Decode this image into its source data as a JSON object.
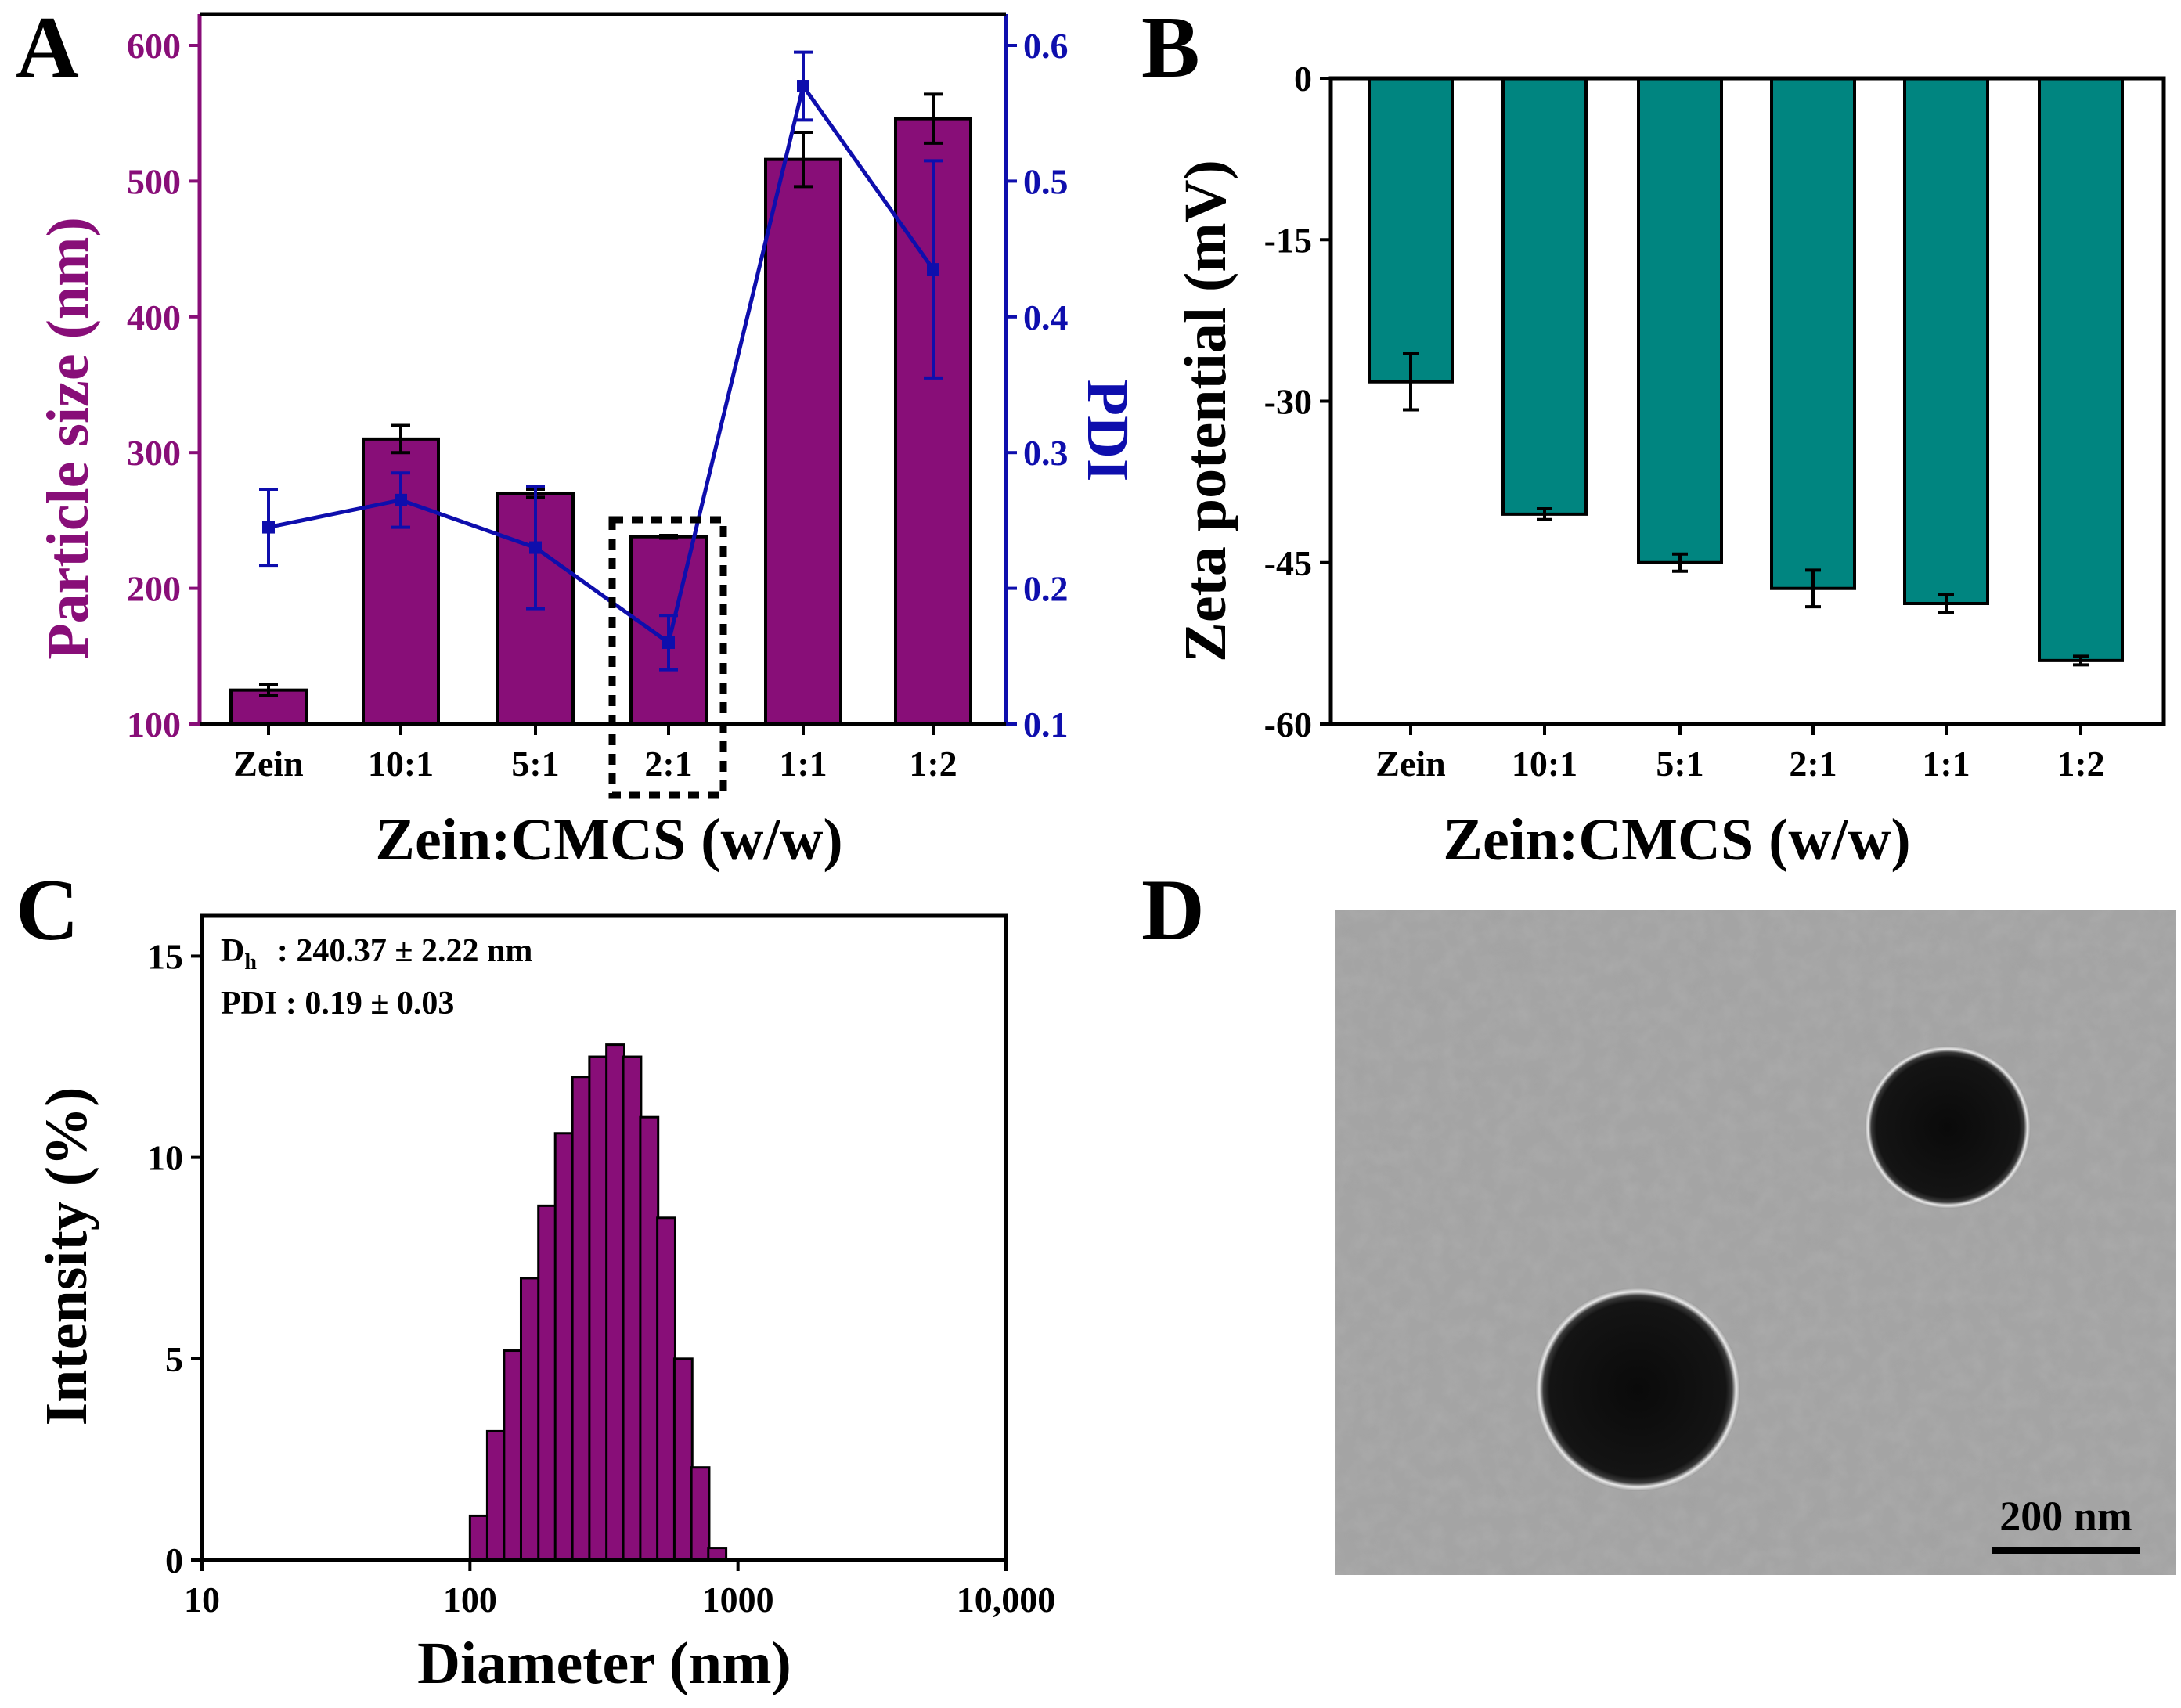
{
  "colors": {
    "purple": "#880e78",
    "teal": "#008580",
    "blue": "#0e0ead",
    "axis": "#000000"
  },
  "panels": {
    "a": "A",
    "b": "B",
    "c": "C",
    "d": "D"
  },
  "chart_data": [
    {
      "id": "A",
      "type": "bar",
      "categories": [
        "Zein",
        "10:1",
        "5:1",
        "2:1",
        "1:1",
        "1:2"
      ],
      "series": [
        {
          "name": "Particle size",
          "axis": "left",
          "values": [
            125,
            310,
            270,
            238,
            516,
            546
          ],
          "errors": [
            4,
            10,
            3,
            1,
            20,
            18
          ]
        },
        {
          "name": "PDI",
          "axis": "right",
          "type": "line",
          "values": [
            0.245,
            0.265,
            0.23,
            0.16,
            0.57,
            0.435
          ],
          "errors": [
            0.028,
            0.02,
            0.045,
            0.02,
            0.025,
            0.08
          ]
        }
      ],
      "xlabel": "Zein:CMCS (w/w)",
      "ylabel": "Particle size (nm)",
      "y2label": "PDI",
      "ylim": [
        100,
        600
      ],
      "y2lim": [
        0.1,
        0.6
      ],
      "yticks": [
        "100",
        "200",
        "300",
        "400",
        "500",
        "600"
      ],
      "y2ticks": [
        "0.1",
        "0.2",
        "0.3",
        "0.4",
        "0.5",
        "0.6"
      ],
      "highlight": "2:1"
    },
    {
      "id": "B",
      "type": "bar",
      "categories": [
        "Zein",
        "10:1",
        "5:1",
        "2:1",
        "1:1",
        "1:2"
      ],
      "values": [
        -28.2,
        -40.5,
        -45.0,
        -47.4,
        -48.8,
        -54.1
      ],
      "errors": [
        2.6,
        0.5,
        0.8,
        1.7,
        0.8,
        0.4
      ],
      "xlabel": "Zein:CMCS (w/w)",
      "ylabel": "Zeta potential (mV)",
      "ylim": [
        -60,
        0
      ],
      "yticks": [
        "0",
        "-15",
        "-30",
        "-45",
        "-60"
      ]
    },
    {
      "id": "C",
      "type": "bar",
      "scale": "log-x",
      "bin_width_log10": 0.0667,
      "x": [
        100,
        116,
        134,
        155,
        180,
        208,
        241,
        279,
        323,
        373,
        432,
        500,
        579,
        670,
        775
      ],
      "values": [
        1.1,
        3.2,
        5.2,
        7.0,
        8.8,
        10.6,
        12.0,
        12.5,
        12.8,
        12.5,
        11.0,
        8.5,
        5.0,
        2.3,
        0.3
      ],
      "xlabel": "Diameter (nm)",
      "ylabel": "Intensity (%)",
      "xlim": [
        10,
        10000
      ],
      "ylim": [
        0,
        16
      ],
      "xticks": [
        "10",
        "100",
        "1000",
        "10,000"
      ],
      "yticks": [
        "0",
        "5",
        "10",
        "15"
      ],
      "annotations": {
        "dh_main": "D",
        "dh_sub": "h",
        "dh_value": ": 240.37 ± 2.22 nm",
        "pdi": "PDI : 0.19 ± 0.03"
      }
    }
  ],
  "tem": {
    "scale_bar": "200 nm"
  }
}
